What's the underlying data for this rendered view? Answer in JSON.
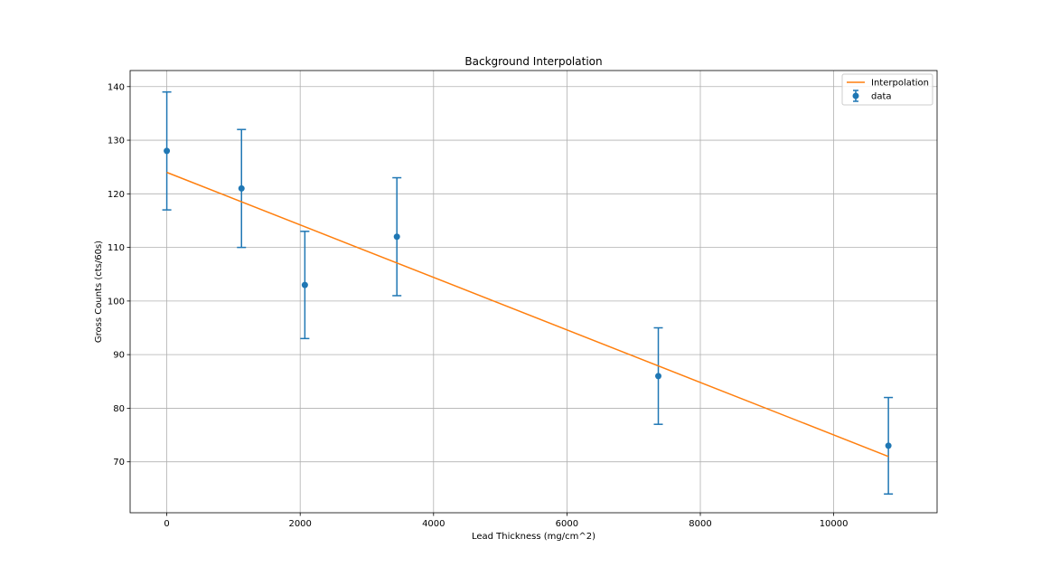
{
  "chart_data": {
    "type": "scatter",
    "title": "Background Interpolation",
    "xlabel": "Lead Thickness (mg/cm^2)",
    "ylabel": "Gross Counts (cts/60s)",
    "xlim": [
      -550,
      11550
    ],
    "ylim": [
      60.5,
      143
    ],
    "xticks": [
      0,
      2000,
      4000,
      6000,
      8000,
      10000
    ],
    "yticks": [
      70,
      80,
      90,
      100,
      110,
      120,
      130,
      140
    ],
    "grid": true,
    "legend_position": "top-right",
    "series": [
      {
        "name": "data",
        "kind": "errorbar",
        "color": "#1f77b4",
        "x": [
          0,
          1120,
          2070,
          3450,
          7370,
          10820
        ],
        "y": [
          128,
          121,
          103,
          112,
          86,
          73
        ],
        "yerr": [
          11,
          11,
          10,
          11,
          9,
          9
        ]
      },
      {
        "name": "Interpolation",
        "kind": "line",
        "color": "#ff7f0e",
        "x": [
          0,
          10820
        ],
        "y": [
          124,
          71
        ]
      }
    ]
  }
}
